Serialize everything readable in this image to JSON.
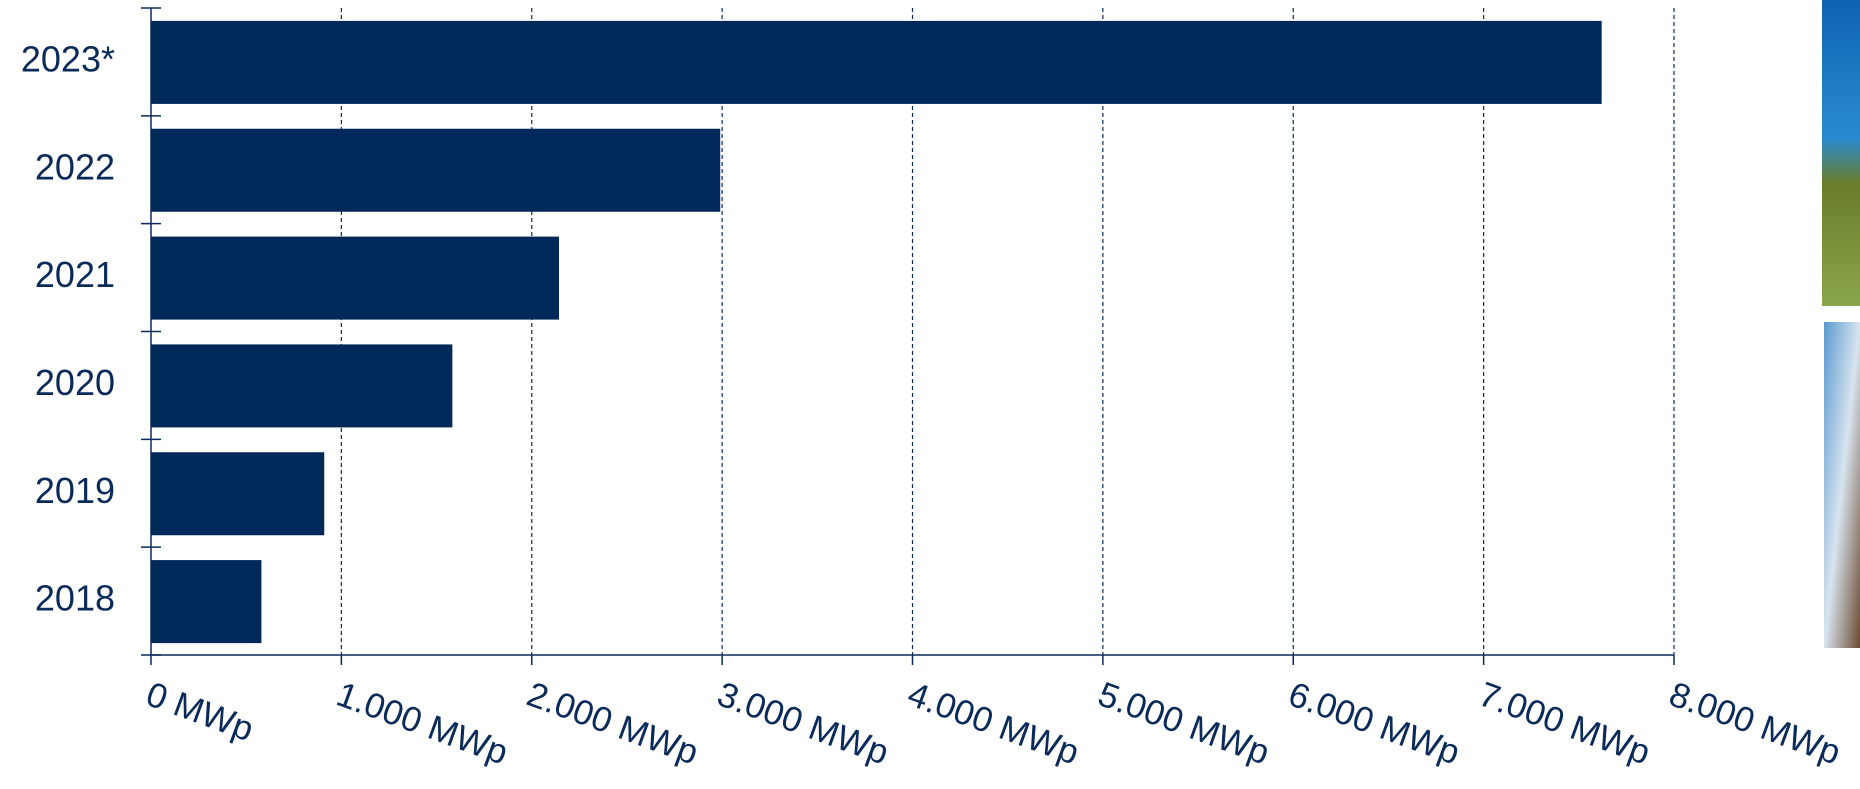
{
  "chart_data": {
    "type": "bar",
    "orientation": "horizontal",
    "categories": [
      "2023*",
      "2022",
      "2021",
      "2020",
      "2019",
      "2018"
    ],
    "values": [
      7620,
      2990,
      2143,
      1583,
      910,
      580
    ],
    "color": "#002858",
    "xlim": [
      0,
      8000
    ],
    "xticks": [
      {
        "value": 0,
        "label": "0 MWp"
      },
      {
        "value": 1000,
        "label": "1.000 MWp"
      },
      {
        "value": 2000,
        "label": "2.000 MWp"
      },
      {
        "value": 3000,
        "label": "3.000 MWp"
      },
      {
        "value": 4000,
        "label": "4.000 MWp"
      },
      {
        "value": 5000,
        "label": "5.000 MWp"
      },
      {
        "value": 6000,
        "label": "6.000 MWp"
      },
      {
        "value": 7000,
        "label": "7.000 MWp"
      },
      {
        "value": 8000,
        "label": "8.000 MWp"
      }
    ],
    "grid": true
  }
}
